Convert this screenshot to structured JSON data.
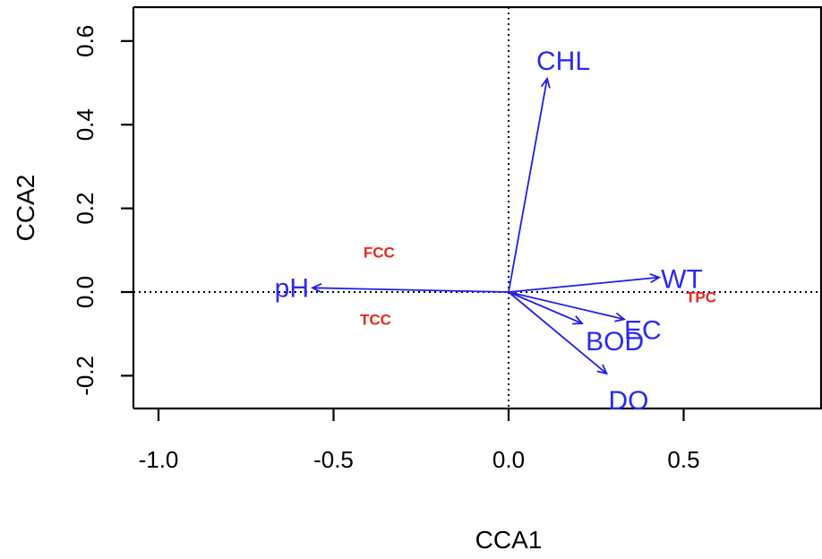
{
  "chart_data": {
    "type": "scatter",
    "title": "",
    "xlabel": "CCA1",
    "ylabel": "CCA2",
    "xlim": [
      -1.0,
      0.9
    ],
    "ylim": [
      -0.28,
      0.68
    ],
    "xticks": [
      -1.0,
      -0.5,
      0.0,
      0.5
    ],
    "xtick_labels": [
      "-1.0",
      "-0.5",
      "0.0",
      "0.5"
    ],
    "yticks": [
      -0.2,
      0.0,
      0.2,
      0.4,
      0.6
    ],
    "ytick_labels": [
      "-0.2",
      "0.0",
      "0.2",
      "0.4",
      "0.6"
    ],
    "reference_lines": {
      "x": 0.0,
      "y": 0.0,
      "style": "dotted"
    },
    "environment_vectors": [
      {
        "label": "CHL",
        "x": 0.11,
        "y": 0.51
      },
      {
        "label": "WT",
        "x": 0.43,
        "y": 0.035
      },
      {
        "label": "EC",
        "x": 0.33,
        "y": -0.065
      },
      {
        "label": "BOD",
        "x": 0.21,
        "y": -0.075
      },
      {
        "label": "DO",
        "x": 0.28,
        "y": -0.195
      },
      {
        "label": "pH",
        "x": -0.56,
        "y": 0.01
      }
    ],
    "species_scores": [
      {
        "label": "FCC",
        "x": -0.37,
        "y": 0.095
      },
      {
        "label": "TCC",
        "x": -0.38,
        "y": -0.065
      },
      {
        "label": "TPC",
        "x": 0.55,
        "y": -0.012
      }
    ],
    "colors": {
      "vectors": "#1f1fe6",
      "vector_labels": "#2a2af0",
      "species": "#e8271f"
    }
  }
}
